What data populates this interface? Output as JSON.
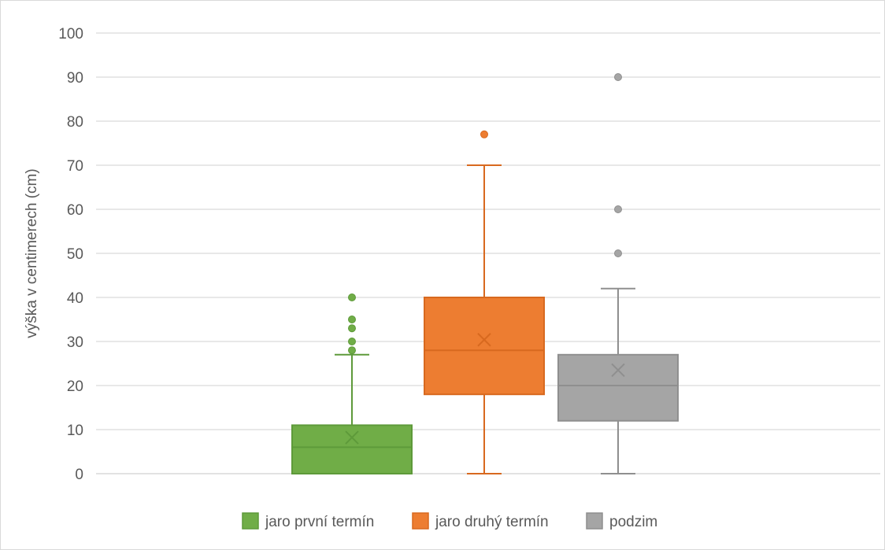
{
  "chart_data": {
    "type": "boxplot",
    "ylabel": "výška v centimerech (cm)",
    "ylim": [
      0,
      100
    ],
    "yticks": [
      "0",
      "10",
      "20",
      "30",
      "40",
      "50",
      "60",
      "70",
      "80",
      "90",
      "100"
    ],
    "grid": true,
    "legend": "bottom",
    "series": [
      {
        "name": "jaro první termín",
        "color": "#70ad47",
        "whisker_low": 0,
        "q1": 0,
        "median": 6,
        "q3": 11,
        "whisker_high": 27,
        "mean": 8.2,
        "outliers": [
          28,
          30,
          33,
          35,
          40
        ]
      },
      {
        "name": "jaro druhý termín",
        "color": "#ed7d31",
        "whisker_low": 0,
        "q1": 18,
        "median": 28,
        "q3": 40,
        "whisker_high": 70,
        "mean": 30.4,
        "outliers": [
          77
        ]
      },
      {
        "name": "podzim",
        "color": "#a5a5a5",
        "whisker_low": 0,
        "q1": 12,
        "median": 20,
        "q3": 27,
        "whisker_high": 42,
        "mean": 23.5,
        "outliers": [
          50,
          60,
          90
        ]
      }
    ]
  }
}
